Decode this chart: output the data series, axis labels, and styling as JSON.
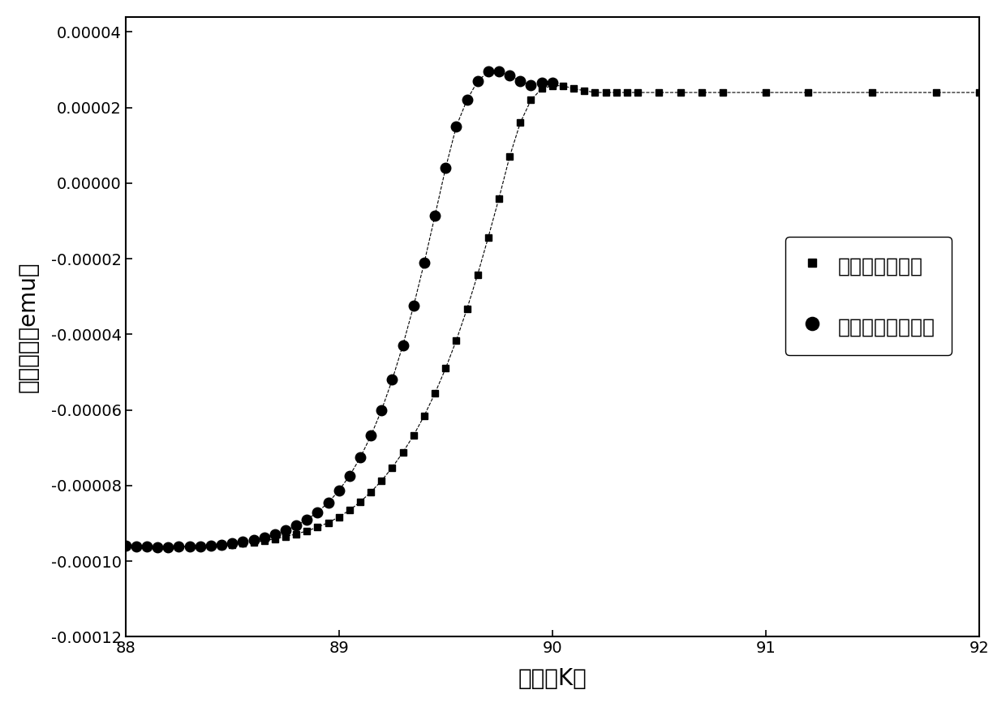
{
  "title": "",
  "xlabel": "温度（K）",
  "ylabel": "磁化强度（emu）",
  "xlim": [
    88,
    92
  ],
  "ylim": [
    -0.00012,
    4.4e-05
  ],
  "yticks": [
    -0.00012,
    -0.0001,
    -8e-05,
    -6e-05,
    -4e-05,
    -2e-05,
    0.0,
    2e-05,
    4e-05
  ],
  "xticks": [
    88,
    89,
    90,
    91,
    92
  ],
  "legend1": "经电化学法处理",
  "legend2": "未经电化学法处理",
  "color": "#000000",
  "series1_x": [
    88.0,
    88.05,
    88.1,
    88.15,
    88.2,
    88.25,
    88.3,
    88.35,
    88.4,
    88.45,
    88.5,
    88.55,
    88.6,
    88.65,
    88.7,
    88.75,
    88.8,
    88.85,
    88.9,
    88.95,
    89.0,
    89.05,
    89.1,
    89.15,
    89.2,
    89.25,
    89.3,
    89.35,
    89.4,
    89.45,
    89.5,
    89.55,
    89.6,
    89.65,
    89.7,
    89.75,
    89.8,
    89.85,
    89.9,
    89.95,
    90.0,
    90.05,
    90.1,
    90.15,
    90.2,
    90.25,
    90.3,
    90.35,
    90.4,
    90.5,
    90.6,
    90.7,
    90.8,
    91.0,
    91.2,
    91.5,
    91.8,
    92.0
  ],
  "series1_y": [
    -9.58e-05,
    -9.6e-05,
    -9.62e-05,
    -9.63e-05,
    -9.63e-05,
    -9.62e-05,
    -9.61e-05,
    -9.6e-05,
    -9.59e-05,
    -9.58e-05,
    -9.56e-05,
    -9.53e-05,
    -9.5e-05,
    -9.46e-05,
    -9.41e-05,
    -9.35e-05,
    -9.28e-05,
    -9.2e-05,
    -9.1e-05,
    -8.98e-05,
    -8.83e-05,
    -8.65e-05,
    -8.43e-05,
    -8.17e-05,
    -7.87e-05,
    -7.52e-05,
    -7.12e-05,
    -6.67e-05,
    -6.15e-05,
    -5.56e-05,
    -4.9e-05,
    -4.16e-05,
    -3.33e-05,
    -2.42e-05,
    -1.43e-05,
    -4e-06,
    7e-06,
    1.6e-05,
    2.2e-05,
    2.5e-05,
    2.58e-05,
    2.58e-05,
    2.5e-05,
    2.45e-05,
    2.4e-05,
    2.4e-05,
    2.4e-05,
    2.4e-05,
    2.4e-05,
    2.4e-05,
    2.4e-05,
    2.4e-05,
    2.4e-05,
    2.4e-05,
    2.4e-05,
    2.4e-05,
    2.4e-05,
    2.4e-05
  ],
  "series2_x": [
    88.0,
    88.05,
    88.1,
    88.15,
    88.2,
    88.25,
    88.3,
    88.35,
    88.4,
    88.45,
    88.5,
    88.55,
    88.6,
    88.65,
    88.7,
    88.75,
    88.8,
    88.85,
    88.9,
    88.95,
    89.0,
    89.05,
    89.1,
    89.15,
    89.2,
    89.25,
    89.3,
    89.35,
    89.4,
    89.45,
    89.5,
    89.55,
    89.6,
    89.65,
    89.7,
    89.75,
    89.8,
    89.85,
    89.9,
    89.95,
    90.0
  ],
  "series2_y": [
    -9.58e-05,
    -9.6e-05,
    -9.62e-05,
    -9.63e-05,
    -9.63e-05,
    -9.62e-05,
    -9.61e-05,
    -9.6e-05,
    -9.58e-05,
    -9.56e-05,
    -9.53e-05,
    -9.49e-05,
    -9.44e-05,
    -9.37e-05,
    -9.29e-05,
    -9.19e-05,
    -9.06e-05,
    -8.9e-05,
    -8.7e-05,
    -8.45e-05,
    -8.13e-05,
    -7.74e-05,
    -7.26e-05,
    -6.68e-05,
    -6e-05,
    -5.2e-05,
    -4.28e-05,
    -3.25e-05,
    -2.1e-05,
    -8.6e-06,
    4e-06,
    1.5e-05,
    2.2e-05,
    2.7e-05,
    2.95e-05,
    2.95e-05,
    2.85e-05,
    2.7e-05,
    2.6e-05,
    2.65e-05,
    2.65e-05
  ]
}
